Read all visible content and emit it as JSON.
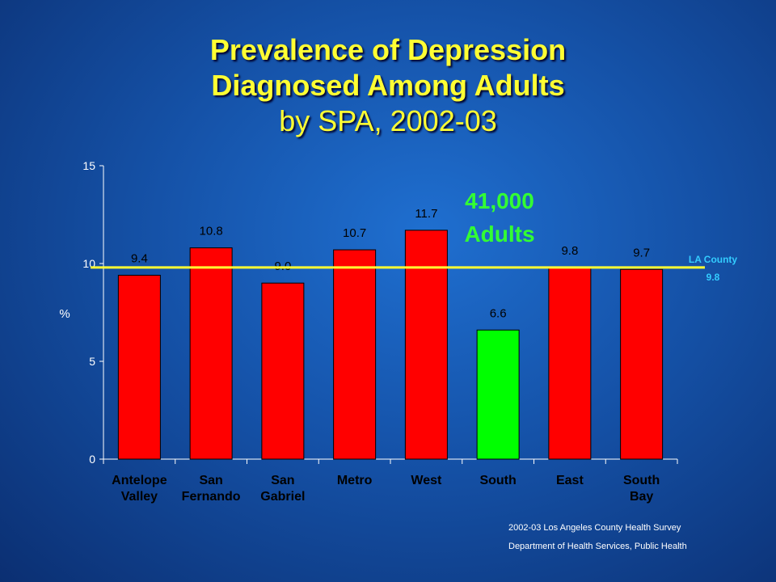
{
  "title": {
    "line1": "Prevalence of Depression",
    "line2": "Diagnosed Among Adults",
    "line3": "by SPA, 2002-03"
  },
  "chart_data": {
    "type": "bar",
    "categories": [
      [
        "Antelope",
        "Valley"
      ],
      [
        "San",
        "Fernando"
      ],
      [
        "San",
        "Gabriel"
      ],
      [
        "Metro"
      ],
      [
        "West"
      ],
      [
        "South"
      ],
      [
        "East"
      ],
      [
        "South",
        "Bay"
      ]
    ],
    "values": [
      9.4,
      10.8,
      9.0,
      10.7,
      11.7,
      6.6,
      9.8,
      9.7
    ],
    "value_labels": [
      "9.4",
      "10.8",
      "9.0",
      "10.7",
      "11.7",
      "6.6",
      "9.8",
      "9.7"
    ],
    "bar_colors": [
      "#ff0000",
      "#ff0000",
      "#ff0000",
      "#ff0000",
      "#ff0000",
      "#00ff00",
      "#ff0000",
      "#ff0000"
    ],
    "ylabel": "%",
    "ylim": [
      0,
      15
    ],
    "yticks": [
      "0",
      "5",
      "10",
      "15"
    ],
    "ytick_values": [
      0,
      5,
      10,
      15
    ],
    "reference_line": {
      "value": 9.8,
      "label_line1": "LA County",
      "label_line2": "9.8",
      "color": "#ffff33"
    },
    "annotation": {
      "line1": "41,000",
      "line2": "Adults",
      "color": "#33ff33"
    }
  },
  "footer": {
    "line1": "2002-03 Los Angeles County Health Survey",
    "line2": "Department of Health Services, Public Health"
  }
}
